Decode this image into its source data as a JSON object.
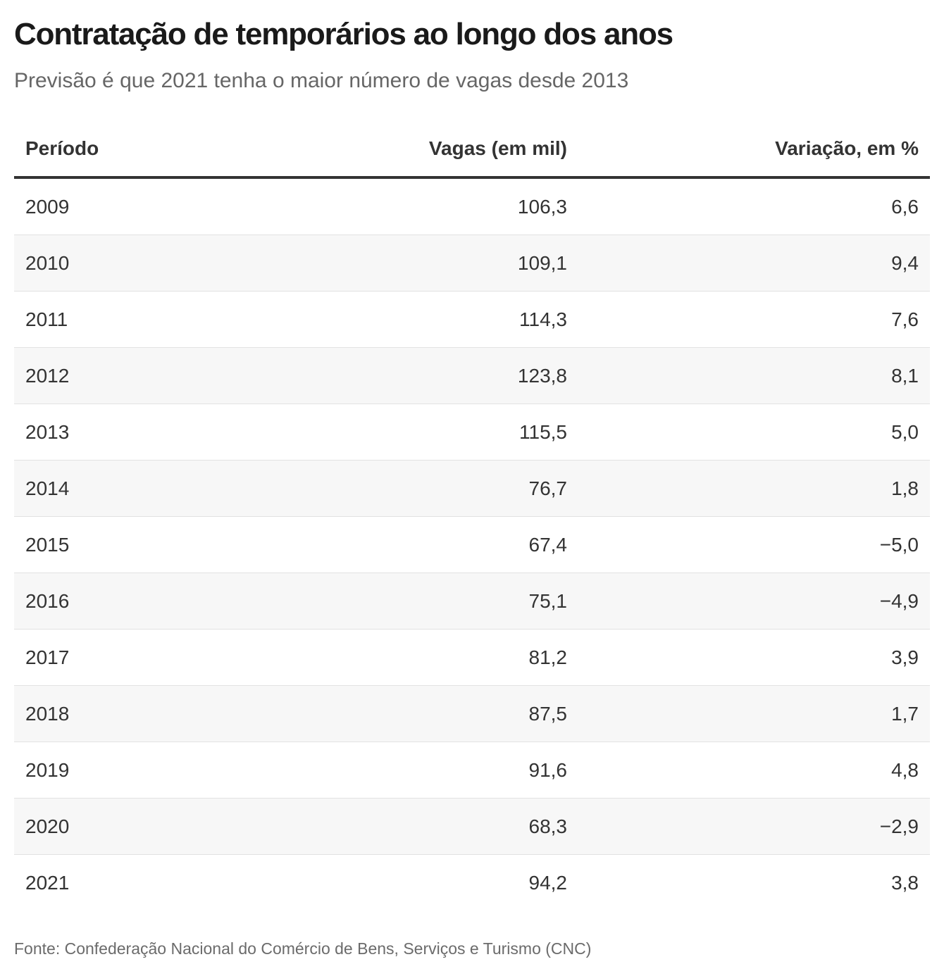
{
  "title": "Contratação de temporários ao longo dos anos",
  "subtitle": "Previsão é que 2021 tenha o maior número de vagas desde 2013",
  "source": "Fonte: Confederação Nacional do Comércio de Bens, Serviços e Turismo (CNC)",
  "colors": {
    "text": "#333333",
    "title": "#1a1a1a",
    "stripe": "#f7f7f7",
    "rule": "#333333"
  },
  "chart_data": {
    "type": "table",
    "title": "Contratação de temporários ao longo dos anos",
    "subtitle": "Previsão é que 2021 tenha o maior número de vagas desde 2013",
    "columns": [
      "Período",
      "Vagas (em mil)",
      "Variação, em %"
    ],
    "rows": [
      [
        "2009",
        "106,3",
        "6,6"
      ],
      [
        "2010",
        "109,1",
        "9,4"
      ],
      [
        "2011",
        "114,3",
        "7,6"
      ],
      [
        "2012",
        "123,8",
        "8,1"
      ],
      [
        "2013",
        "115,5",
        "5,0"
      ],
      [
        "2014",
        "76,7",
        "1,8"
      ],
      [
        "2015",
        "67,4",
        "−5,0"
      ],
      [
        "2016",
        "75,1",
        "−4,9"
      ],
      [
        "2017",
        "81,2",
        "3,9"
      ],
      [
        "2018",
        "87,5",
        "1,7"
      ],
      [
        "2019",
        "91,6",
        "4,8"
      ],
      [
        "2020",
        "68,3",
        "−2,9"
      ],
      [
        "2021",
        "94,2",
        "3,8"
      ]
    ]
  }
}
